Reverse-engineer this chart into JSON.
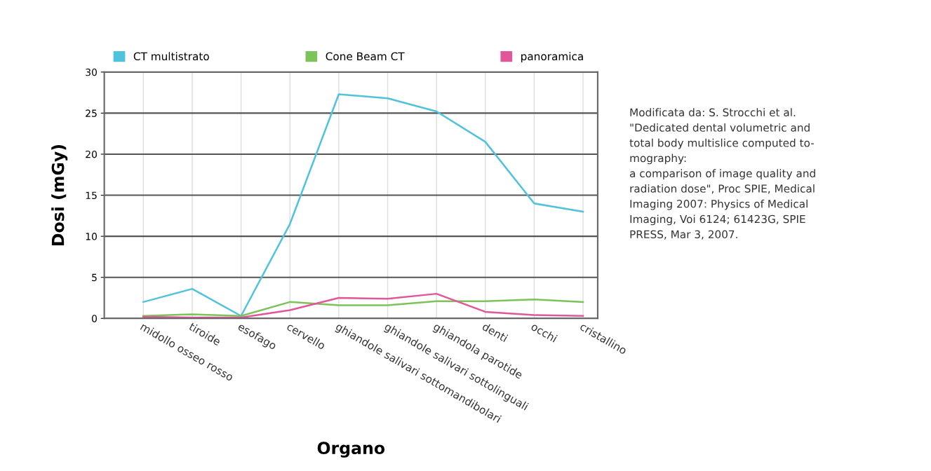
{
  "chart_data": {
    "type": "line",
    "xlabel": "Organo",
    "ylabel": "Dosi (mGy)",
    "categories": [
      "midollo osseo rosso",
      "tiroide",
      "esofago",
      "cervello",
      "ghiandole salivari sottomandibolari",
      "ghiandole salivari sottolinguali",
      "ghiandola parotide",
      "denti",
      "occhi",
      "cristallino"
    ],
    "series": [
      {
        "name": "CT multistrato",
        "color": "#4fc3dc",
        "values": [
          2.0,
          3.6,
          0.3,
          11.5,
          27.3,
          26.8,
          25.2,
          21.5,
          14.0,
          13.0
        ]
      },
      {
        "name": "Cone Beam CT",
        "color": "#7cc35a",
        "values": [
          0.3,
          0.5,
          0.3,
          2.0,
          1.6,
          1.6,
          2.1,
          2.1,
          2.3,
          2.0
        ]
      },
      {
        "name": "panoramica",
        "color": "#e0579a",
        "values": [
          0.2,
          0.1,
          0.1,
          1.0,
          2.5,
          2.4,
          3.0,
          0.8,
          0.4,
          0.3
        ]
      }
    ],
    "ylim": [
      0,
      30
    ],
    "yticks": [
      0,
      5,
      10,
      15,
      20,
      25,
      30
    ],
    "grid": true,
    "legend": "top",
    "marker": "none",
    "line_style": "solid",
    "annotations": [
      "Modificata da: S. Strocchi et al.\n\"Dedicated dental volumetric and\ntotal body multislice computed to-\nmography:\na comparison of image quality and\nradiation dose\", Proc SPIE, Medical\nImaging 2007: Physics of Medical\nImaging, Voi 6124; 61423G, SPIE\nPRESS, Mar 3, 2007."
    ]
  }
}
